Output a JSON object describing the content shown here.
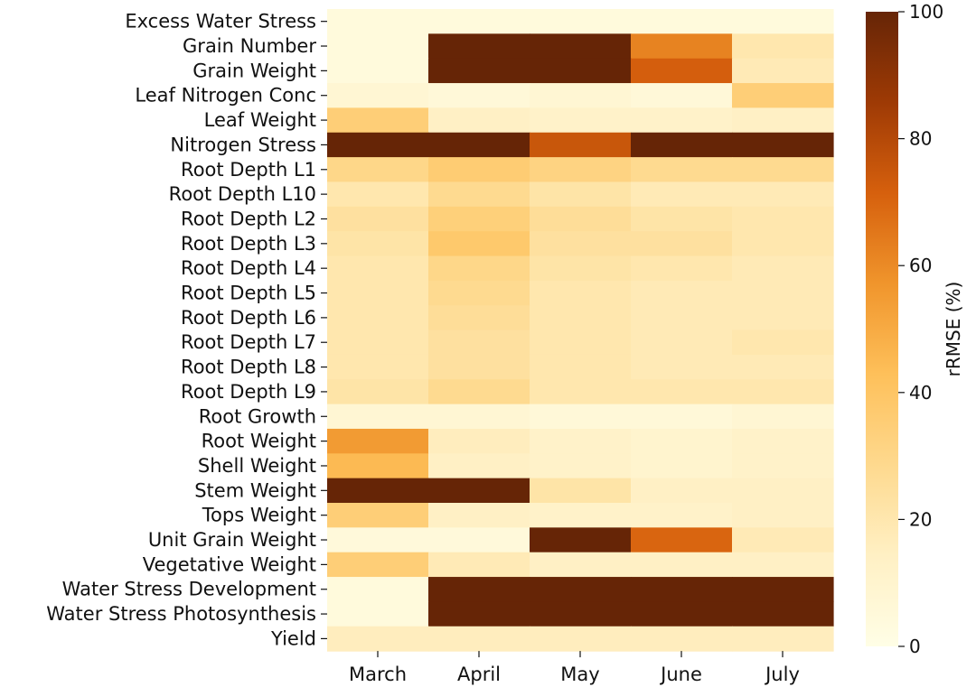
{
  "chart_data": {
    "type": "heatmap",
    "title": "",
    "xlabel": "",
    "ylabel": "",
    "x": [
      "March",
      "April",
      "May",
      "June",
      "July"
    ],
    "y": [
      "Excess Water Stress",
      "Grain Number",
      "Grain Weight",
      "Leaf Nitrogen Conc",
      "Leaf Weight",
      "Nitrogen Stress",
      "Root Depth L1",
      "Root Depth L10",
      "Root Depth L2",
      "Root Depth L3",
      "Root Depth L4",
      "Root Depth L5",
      "Root Depth L6",
      "Root Depth L7",
      "Root Depth L8",
      "Root Depth L9",
      "Root Growth",
      "Root Weight",
      "Shell Weight",
      "Stem Weight",
      "Tops Weight",
      "Unit Grain Weight",
      "Vegetative Weight",
      "Water Stress Development",
      "Water Stress Photosynthesis",
      "Yield"
    ],
    "values": [
      [
        4,
        4,
        4,
        4,
        4
      ],
      [
        4,
        100,
        100,
        62,
        20
      ],
      [
        4,
        100,
        100,
        72,
        18
      ],
      [
        8,
        6,
        8,
        6,
        35
      ],
      [
        35,
        14,
        12,
        12,
        14
      ],
      [
        100,
        100,
        75,
        100,
        100
      ],
      [
        30,
        36,
        32,
        28,
        28
      ],
      [
        20,
        28,
        22,
        18,
        18
      ],
      [
        24,
        34,
        26,
        22,
        20
      ],
      [
        22,
        38,
        24,
        24,
        20
      ],
      [
        20,
        30,
        22,
        20,
        18
      ],
      [
        20,
        28,
        20,
        18,
        18
      ],
      [
        20,
        26,
        20,
        18,
        18
      ],
      [
        20,
        24,
        20,
        18,
        20
      ],
      [
        20,
        24,
        20,
        18,
        18
      ],
      [
        22,
        28,
        20,
        20,
        20
      ],
      [
        8,
        8,
        6,
        6,
        8
      ],
      [
        55,
        16,
        12,
        10,
        12
      ],
      [
        45,
        14,
        12,
        10,
        12
      ],
      [
        100,
        100,
        22,
        14,
        14
      ],
      [
        35,
        14,
        12,
        12,
        14
      ],
      [
        5,
        5,
        100,
        70,
        18
      ],
      [
        35,
        18,
        14,
        14,
        14
      ],
      [
        4,
        100,
        100,
        100,
        100
      ],
      [
        4,
        100,
        100,
        100,
        100
      ],
      [
        16,
        16,
        16,
        16,
        16
      ]
    ],
    "zlim": [
      0,
      100
    ],
    "colorbar": {
      "label": "rRMSE (%)",
      "ticks": [
        0,
        20,
        40,
        60,
        80,
        100
      ]
    },
    "colormap": [
      "#fffee6",
      "#fff0c4",
      "#fed98e",
      "#fec05a",
      "#f0952c",
      "#d6600d",
      "#9e3a05",
      "#662506"
    ],
    "grid": false
  }
}
